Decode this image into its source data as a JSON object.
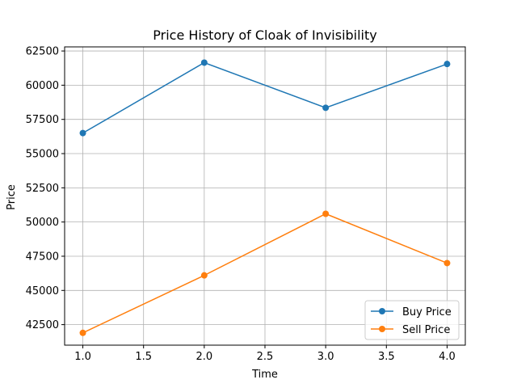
{
  "chart_data": {
    "type": "line",
    "title": "Price History of Cloak of Invisibility",
    "xlabel": "Time",
    "ylabel": "Price",
    "xlim": [
      0.85,
      4.15
    ],
    "ylim": [
      41000,
      62800
    ],
    "xticks": [
      1.0,
      1.5,
      2.0,
      2.5,
      3.0,
      3.5,
      4.0
    ],
    "xtick_labels": [
      "1.0",
      "1.5",
      "2.0",
      "2.5",
      "3.0",
      "3.5",
      "4.0"
    ],
    "yticks": [
      42500,
      45000,
      47500,
      50000,
      52500,
      55000,
      57500,
      60000,
      62500
    ],
    "ytick_labels": [
      "42500",
      "45000",
      "47500",
      "50000",
      "52500",
      "55000",
      "57500",
      "60000",
      "62500"
    ],
    "grid": true,
    "legend_position": "lower-right",
    "x": [
      1,
      2,
      3,
      4
    ],
    "series": [
      {
        "name": "Buy Price",
        "color": "#1f77b4",
        "values": [
          56500,
          61650,
          58350,
          61550
        ]
      },
      {
        "name": "Sell Price",
        "color": "#ff7f0e",
        "values": [
          41900,
          46100,
          50600,
          47000
        ]
      }
    ]
  }
}
